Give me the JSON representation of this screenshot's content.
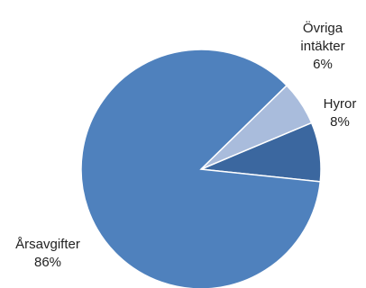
{
  "chart_data": {
    "type": "pie",
    "slices": [
      {
        "label": "Årsavgifter",
        "value": 86,
        "value_label": "86%",
        "color": "#4f81bd"
      },
      {
        "label": "Hyror",
        "value": 8,
        "value_label": "8%",
        "color": "#3b679f"
      },
      {
        "label": "Övriga intäkter",
        "label_lines": [
          "Övriga",
          "intäkter"
        ],
        "value": 6,
        "value_label": "6%",
        "color": "#a9bcdc"
      }
    ]
  }
}
